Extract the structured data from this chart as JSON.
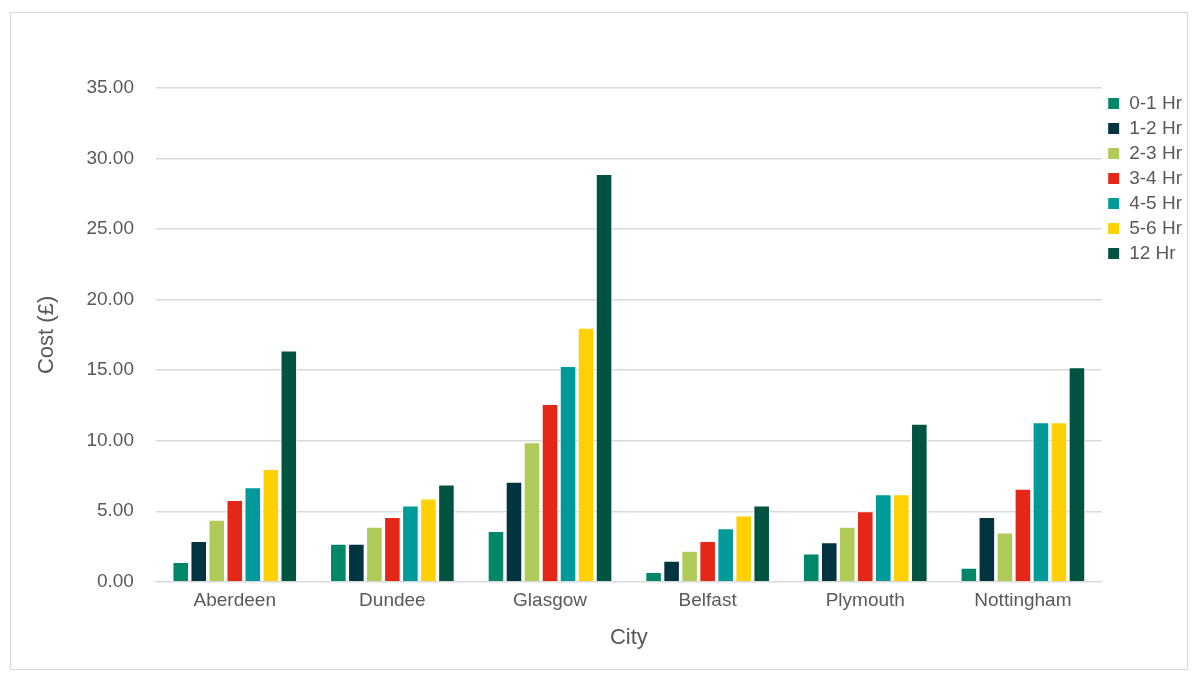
{
  "chart_data": {
    "type": "bar",
    "xlabel": "City",
    "ylabel": "Cost (£)",
    "categories": [
      "Aberdeen",
      "Dundee",
      "Glasgow",
      "Belfast",
      "Plymouth",
      "Nottingham"
    ],
    "series": [
      {
        "name": "0-1 Hr",
        "color": "#00876a",
        "values": [
          1.4,
          2.7,
          3.6,
          0.7,
          2.0,
          1.0
        ]
      },
      {
        "name": "1-2 Hr",
        "color": "#003440",
        "values": [
          2.9,
          2.7,
          7.1,
          1.5,
          2.8,
          4.6
        ]
      },
      {
        "name": "2-3 Hr",
        "color": "#b0cb57",
        "values": [
          4.4,
          3.9,
          9.9,
          2.2,
          3.9,
          3.5
        ]
      },
      {
        "name": "3-4 Hr",
        "color": "#e52717",
        "values": [
          5.8,
          4.6,
          12.6,
          2.9,
          5.0,
          6.6
        ]
      },
      {
        "name": "4-5 Hr",
        "color": "#009a9a",
        "values": [
          6.7,
          5.4,
          15.3,
          3.8,
          6.2,
          11.3
        ]
      },
      {
        "name": "5-6 Hr",
        "color": "#ffd100",
        "values": [
          8.0,
          5.9,
          18.0,
          4.7,
          6.2,
          11.3
        ]
      },
      {
        "name": "12 Hr",
        "color": "#005340",
        "values": [
          16.4,
          6.9,
          28.9,
          5.4,
          11.2,
          15.2
        ]
      }
    ],
    "ylim": [
      0,
      35
    ],
    "yticks": [
      {
        "value": 0,
        "label": "0.00"
      },
      {
        "value": 5,
        "label": "5.00"
      },
      {
        "value": 10,
        "label": "10.00"
      },
      {
        "value": 15,
        "label": "15.00"
      },
      {
        "value": 20,
        "label": "20.00"
      },
      {
        "value": 25,
        "label": "25.00"
      },
      {
        "value": 30,
        "label": "30.00"
      },
      {
        "value": 35,
        "label": "35.00"
      }
    ],
    "grid": "y",
    "legend": "right"
  }
}
